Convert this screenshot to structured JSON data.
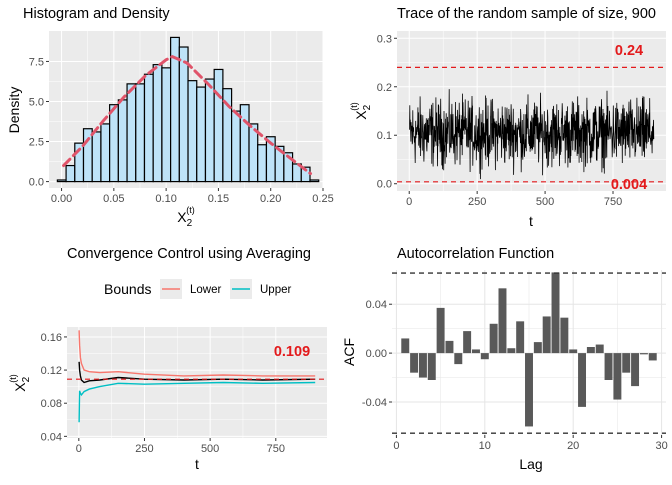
{
  "colors": {
    "panel_bg": "#EBEBEB",
    "grid_major": "#FFFFFF",
    "hist_fill": "#BEE3F8",
    "hist_border": "#000000",
    "density_line": "#E0546A",
    "trace_line": "#000000",
    "bound_line": "#E31A1C",
    "bound_label": "#E31A1C",
    "lower_color": "#F8766D",
    "upper_color": "#00BFC4",
    "mean_color": "#000000",
    "acf_bar": "#595959",
    "acf_bound": "#333333",
    "axis_text": "#4D4D4D"
  },
  "chart_data": [
    {
      "id": "histogram",
      "type": "bar",
      "title": "Histogram and Density",
      "xlabel": "X",
      "xlabel_sub": "2",
      "xlabel_sup": "(t)",
      "ylabel": "Density",
      "xlim": [
        -0.012,
        0.25
      ],
      "ylim": [
        -0.4,
        9.4
      ],
      "x_ticks": [
        0.0,
        0.05,
        0.1,
        0.15,
        0.2,
        0.25
      ],
      "x_tick_labels": [
        "0.00",
        "0.05",
        "0.10",
        "0.15",
        "0.20",
        "0.25"
      ],
      "y_ticks": [
        0.0,
        2.5,
        5.0,
        7.5
      ],
      "y_tick_labels": [
        "0.0",
        "2.5",
        "5.0",
        "7.5"
      ],
      "bin_start": -0.004,
      "bin_width": 0.00833,
      "values": [
        0.1,
        1.0,
        2.4,
        3.3,
        3.1,
        3.6,
        4.8,
        5.1,
        6.1,
        6.1,
        6.7,
        7.3,
        7.1,
        9.0,
        8.4,
        6.3,
        5.9,
        6.4,
        7.0,
        5.8,
        4.4,
        4.8,
        3.6,
        2.3,
        2.8,
        2.2,
        1.8,
        1.1,
        0.9,
        0.1
      ],
      "density": {
        "x": [
          0.002,
          0.02,
          0.04,
          0.06,
          0.08,
          0.1,
          0.106,
          0.12,
          0.14,
          0.16,
          0.18,
          0.2,
          0.22,
          0.238
        ],
        "y": [
          1.0,
          2.2,
          3.8,
          5.3,
          6.6,
          7.6,
          7.8,
          7.4,
          6.1,
          4.7,
          3.5,
          2.4,
          1.4,
          0.5
        ]
      }
    },
    {
      "id": "trace",
      "type": "line",
      "title": "Trace of the random sample of size,  900",
      "xlabel": "t",
      "ylabel": "X",
      "ylabel_sub": "2",
      "ylabel_sup": "(t)",
      "xlim": [
        -45,
        945
      ],
      "ylim": [
        -0.015,
        0.315
      ],
      "x_ticks": [
        0,
        250,
        500,
        750
      ],
      "x_tick_labels": [
        "0",
        "250",
        "500",
        "750"
      ],
      "y_ticks": [
        0.0,
        0.1,
        0.2,
        0.3
      ],
      "y_tick_labels": [
        "0.0",
        "0.1",
        "0.2",
        "0.3"
      ],
      "n": 900,
      "mean": 0.105,
      "spread": 0.042,
      "upper_bound": 0.24,
      "lower_bound": 0.004,
      "upper_label": "0.24",
      "lower_label": "0.004"
    },
    {
      "id": "convergence",
      "type": "line",
      "title": "Convergence Control using Averaging",
      "xlabel": "t",
      "ylabel": "X",
      "ylabel_sub": "2",
      "ylabel_sup": "(t)",
      "legend_title": "Bounds",
      "legend_placement": "top",
      "xlim": [
        -45,
        945
      ],
      "ylim": [
        0.038,
        0.172
      ],
      "x_ticks": [
        0,
        250,
        500,
        750
      ],
      "x_tick_labels": [
        "0",
        "250",
        "500",
        "750"
      ],
      "y_ticks": [
        0.04,
        0.08,
        0.12,
        0.16
      ],
      "y_tick_labels": [
        "0.04",
        "0.08",
        "0.12",
        "0.16"
      ],
      "reference": 0.109,
      "reference_label": "0.109",
      "series": [
        {
          "name": "Lower",
          "color_key": "lower_color",
          "x": [
            1,
            3,
            6,
            10,
            20,
            40,
            80,
            150,
            250,
            400,
            550,
            700,
            900
          ],
          "y": [
            0.168,
            0.15,
            0.135,
            0.128,
            0.12,
            0.118,
            0.117,
            0.118,
            0.115,
            0.113,
            0.114,
            0.113,
            0.113
          ]
        },
        {
          "name": "Upper",
          "color_key": "upper_color",
          "x": [
            1,
            3,
            6,
            10,
            20,
            40,
            80,
            150,
            250,
            400,
            550,
            700,
            900
          ],
          "y": [
            0.057,
            0.095,
            0.092,
            0.09,
            0.094,
            0.097,
            0.1,
            0.104,
            0.103,
            0.104,
            0.105,
            0.104,
            0.105
          ]
        },
        {
          "x": [
            1,
            3,
            6,
            10,
            20,
            40,
            80,
            150,
            250,
            400,
            550,
            700,
            900
          ],
          "y": [
            0.13,
            0.12,
            0.113,
            0.108,
            0.105,
            0.107,
            0.108,
            0.111,
            0.109,
            0.108,
            0.109,
            0.108,
            0.109
          ]
        }
      ]
    },
    {
      "id": "acf",
      "type": "bar",
      "title": "Autocorrelation Function",
      "xlabel": "Lag",
      "ylabel": "ACF",
      "xlim": [
        -0.5,
        30.5
      ],
      "ylim": [
        -0.067,
        0.068
      ],
      "x_ticks": [
        0,
        10,
        20,
        30
      ],
      "x_tick_labels": [
        "0",
        "10",
        "20",
        "30"
      ],
      "y_ticks": [
        -0.04,
        0.0,
        0.04
      ],
      "y_tick_labels": [
        "-0.04",
        "0.00",
        "0.04"
      ],
      "conf_bounds": [
        0.0655,
        -0.0655
      ],
      "lags": [
        1,
        2,
        3,
        4,
        5,
        6,
        7,
        8,
        9,
        10,
        11,
        12,
        13,
        14,
        15,
        16,
        17,
        18,
        19,
        20,
        21,
        22,
        23,
        24,
        25,
        26,
        27,
        28,
        29
      ],
      "values": [
        0.012,
        -0.016,
        -0.02,
        -0.022,
        0.037,
        0.01,
        -0.009,
        0.018,
        0.003,
        -0.005,
        0.024,
        0.053,
        0.004,
        0.026,
        -0.06,
        0.009,
        0.03,
        0.066,
        0.029,
        0.003,
        -0.044,
        0.005,
        0.007,
        -0.022,
        -0.038,
        -0.016,
        -0.027,
        -0.001,
        -0.006
      ]
    }
  ]
}
